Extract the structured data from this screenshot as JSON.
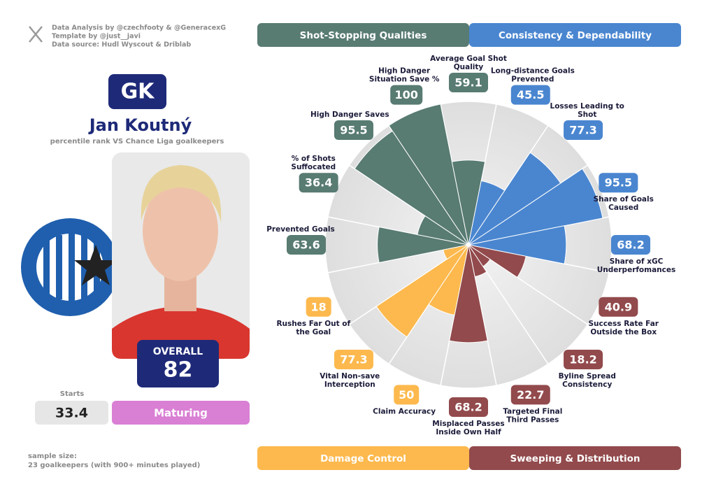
{
  "header": {
    "credits": [
      "Data Analysis by @czechfooty & @GeneracexG",
      "Template by @just__javi",
      "Data source: Hudl Wyscout & Driblab"
    ],
    "position": "GK",
    "name": "Jan Koutný",
    "subtitle": "percentile rank VS Chance Liga goalkeepers"
  },
  "profile": {
    "overall_label": "OVERALL",
    "overall": 82,
    "starts_label": "Starts",
    "starts": 33.4,
    "status": "Maturing"
  },
  "footer": {
    "sample_size_label": "sample size:",
    "sample_size": "23 goalkeepers (with 900+ minutes played)"
  },
  "chart_data": {
    "type": "pizza",
    "rlim": [
      0,
      100
    ],
    "series": [
      {
        "name": "Shot-Stopping Qualities",
        "color": "#587b72",
        "categories": [
          "Prevented Goals",
          "% of Shots Suffocated",
          "High Danger Saves",
          "High Danger Situation Save %",
          "Average Goal Shot Quality"
        ],
        "values": [
          63.6,
          36.4,
          95.5,
          100,
          59.1
        ]
      },
      {
        "name": "Consistency & Dependability",
        "color": "#4a86d0",
        "categories": [
          "Long-distance Goals Prevented",
          "Losses Leading to Shot",
          "Share of Goals Caused",
          "Share of xGC Underperfomances"
        ],
        "values": [
          45.5,
          77.3,
          95.5,
          68.2
        ]
      },
      {
        "name": "Sweeping & Distribution",
        "color": "#924a4c",
        "categories": [
          "Success Rate Far Outside the Box",
          "Byline Spread Consistency",
          "Targeted Final Third Passes",
          "Misplaced Passes Inside Own Half"
        ],
        "values": [
          40.9,
          18.2,
          22.7,
          68.2
        ]
      },
      {
        "name": "Damage Control",
        "color": "#fdb94d",
        "categories": [
          "Claim Accuracy",
          "Vital Non-save Interception",
          "Rushes Far Out of the Goal"
        ],
        "values": [
          50,
          77.3,
          18
        ]
      }
    ]
  }
}
